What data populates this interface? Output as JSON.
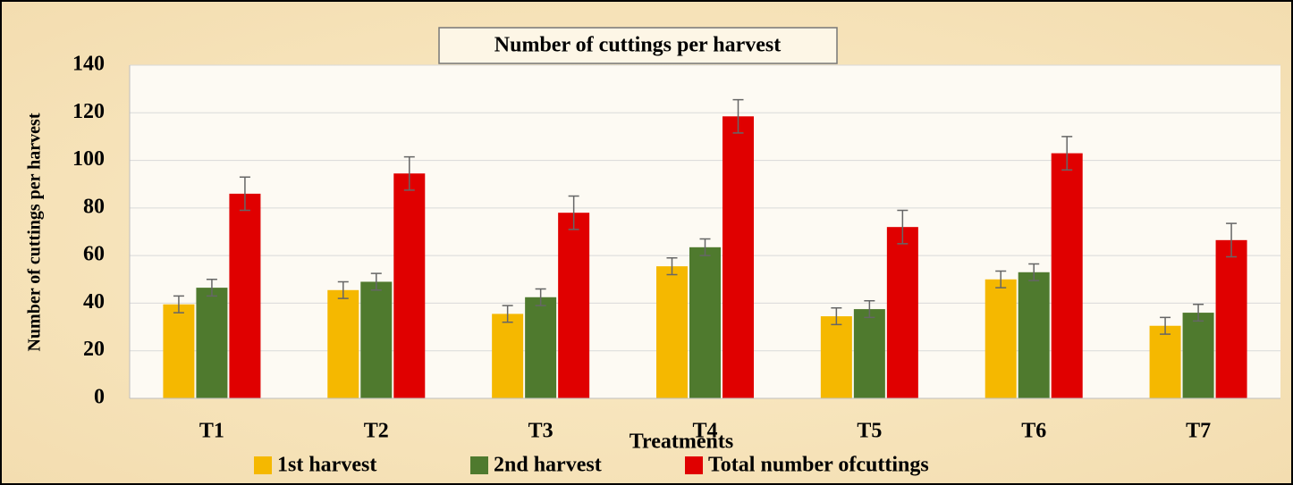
{
  "chart_data": {
    "type": "bar",
    "title": "Number of cuttings per harvest",
    "x_label": "Treatments",
    "y_label": "Number of cuttings per harvest",
    "categories": [
      "T1",
      "T2",
      "T3",
      "T4",
      "T5",
      "T6",
      "T7"
    ],
    "series": [
      {
        "name": "1st harvest",
        "color": "#f5b800",
        "values": [
          39.5,
          45.5,
          35.5,
          55.5,
          34.5,
          50,
          30.5
        ],
        "errors": [
          3.5,
          3.5,
          3.5,
          3.5,
          3.5,
          3.5,
          3.5
        ]
      },
      {
        "name": "2nd harvest",
        "color": "#4f7a2e",
        "values": [
          46.5,
          49,
          42.5,
          63.5,
          37.5,
          53,
          36
        ],
        "errors": [
          3.5,
          3.5,
          3.5,
          3.5,
          3.5,
          3.5,
          3.5
        ]
      },
      {
        "name": "Total number ofcuttings",
        "color": "#e00000",
        "values": [
          86,
          94.5,
          78,
          118.5,
          72,
          103,
          66.5
        ],
        "errors": [
          7,
          7,
          7,
          7,
          7,
          7,
          7
        ]
      }
    ],
    "ylim": [
      0,
      140
    ],
    "yticks": [
      0,
      20,
      40,
      60,
      80,
      100,
      120,
      140
    ],
    "grid": true
  }
}
